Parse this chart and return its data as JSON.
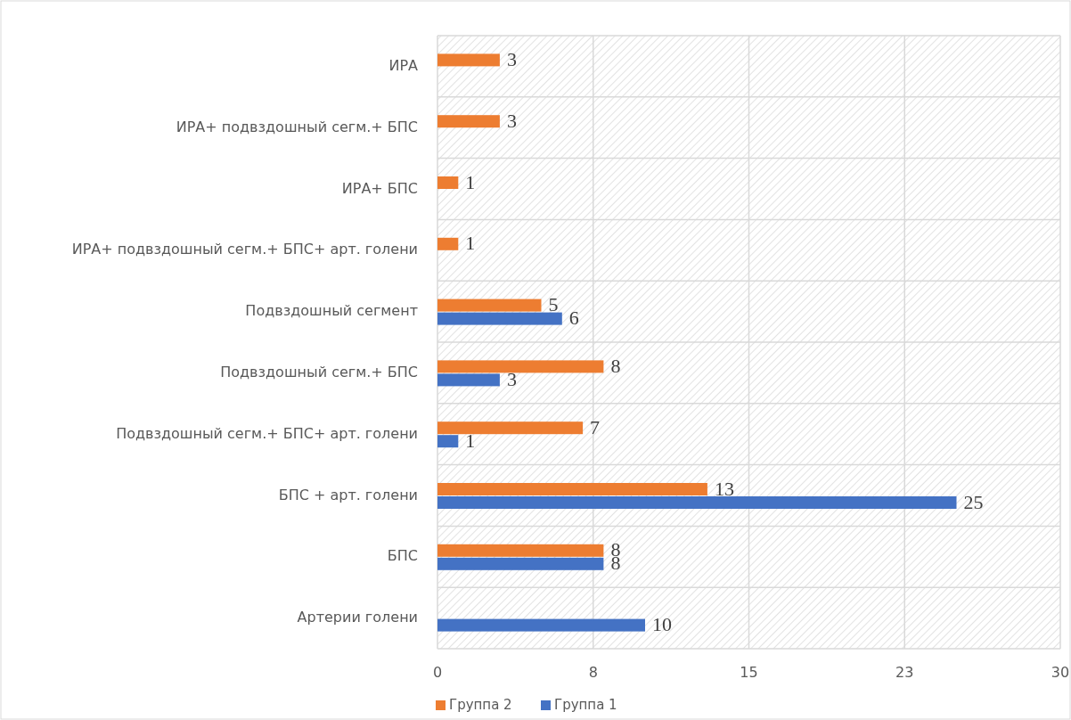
{
  "chart_data": {
    "type": "bar",
    "orientation": "horizontal",
    "categories": [
      "ИРА",
      "ИРА+ подвздошный сегм.+ БПС",
      "ИРА+ БПС",
      "ИРА+ подвздошный сегм.+ БПС+ арт. голени",
      "Подвздошный сегмент",
      "Подвздошный сегм.+ БПС",
      "Подвздошный сегм.+ БПС+ арт. голени",
      "БПС + арт. голени",
      "БПС",
      "Артерии голени"
    ],
    "series": [
      {
        "name": "Группа 2",
        "color": "#ed7d31",
        "values": [
          3,
          3,
          1,
          1,
          5,
          8,
          7,
          13,
          8,
          null
        ]
      },
      {
        "name": "Группа 1",
        "color": "#4472c4",
        "values": [
          null,
          null,
          null,
          null,
          6,
          3,
          1,
          25,
          8,
          10
        ]
      }
    ],
    "xlim": [
      0,
      30
    ],
    "xticks": [
      0,
      {
        "value": 7.5,
        "label": "8"
      },
      15,
      {
        "value": 22.5,
        "label": "23"
      },
      30
    ],
    "grid": true,
    "legend": "bottom",
    "data_labels": true
  }
}
